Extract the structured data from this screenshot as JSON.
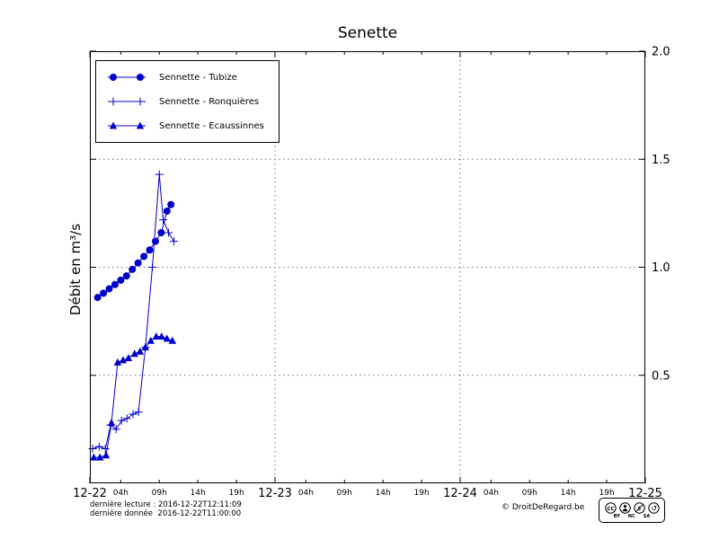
{
  "title": "Senette",
  "footer": {
    "last_read": "dernière lecture : 2016-12-22T12:11:09",
    "last_data": "dernière donnée  2016-12-22T11:00:00",
    "copyright": "© DroitDeRegard.be"
  },
  "license": {
    "cc": "CC",
    "labels": [
      "BY",
      "NC",
      "SA"
    ]
  },
  "chart_data": {
    "type": "line",
    "title": "Senette",
    "ylabel": "Débit en m³/s",
    "color": "#0000cc",
    "xlim_hours": [
      0,
      72
    ],
    "ylim": [
      0,
      2.0
    ],
    "x_major_ticks": [
      {
        "hour": 0,
        "label": "12-22"
      },
      {
        "hour": 24,
        "label": "12-23"
      },
      {
        "hour": 48,
        "label": "12-24"
      },
      {
        "hour": 72,
        "label": "12-25"
      }
    ],
    "x_minor_ticks": [
      {
        "hour": 4,
        "label": "04h"
      },
      {
        "hour": 9,
        "label": "09h"
      },
      {
        "hour": 14,
        "label": "14h"
      },
      {
        "hour": 19,
        "label": "19h"
      },
      {
        "hour": 28,
        "label": "04h"
      },
      {
        "hour": 33,
        "label": "09h"
      },
      {
        "hour": 38,
        "label": "14h"
      },
      {
        "hour": 43,
        "label": "19h"
      },
      {
        "hour": 52,
        "label": "04h"
      },
      {
        "hour": 57,
        "label": "09h"
      },
      {
        "hour": 62,
        "label": "14h"
      },
      {
        "hour": 67,
        "label": "19h"
      }
    ],
    "y_ticks": [
      {
        "value": 0.5,
        "label": "0.5"
      },
      {
        "value": 1.0,
        "label": "1.0"
      },
      {
        "value": 1.5,
        "label": "1.5"
      },
      {
        "value": 2.0,
        "label": "2.0"
      }
    ],
    "grid_x_hours": [
      24,
      48
    ],
    "grid_y_values": [
      0.5,
      1.0,
      1.5
    ],
    "series": [
      {
        "name": "Sennette - Tubize",
        "marker": "circle",
        "x": [
          1,
          1.75,
          2.5,
          3.25,
          4,
          4.75,
          5.5,
          6.25,
          7,
          7.75,
          8.5,
          9.25,
          10,
          10.5
        ],
        "y": [
          0.86,
          0.88,
          0.9,
          0.92,
          0.94,
          0.96,
          0.99,
          1.02,
          1.05,
          1.08,
          1.12,
          1.16,
          1.26,
          1.29
        ]
      },
      {
        "name": "Sennette - Ronquières",
        "marker": "plus",
        "x": [
          0.35,
          1.2,
          2,
          2.7,
          3.4,
          4.1,
          4.8,
          5.6,
          6.3,
          7.2,
          8.1,
          9,
          9.5,
          10.2,
          10.9
        ],
        "y": [
          0.16,
          0.17,
          0.16,
          0.27,
          0.25,
          0.29,
          0.3,
          0.32,
          0.33,
          0.63,
          1.0,
          1.43,
          1.22,
          1.16,
          1.12
        ]
      },
      {
        "name": "Sennette - Ecaussinnes",
        "marker": "triangle",
        "x": [
          0.5,
          1.3,
          2.1,
          2.8,
          3.6,
          4.3,
          5,
          5.8,
          6.5,
          7.2,
          7.9,
          8.6,
          9.3,
          10,
          10.7
        ],
        "y": [
          0.12,
          0.12,
          0.13,
          0.28,
          0.56,
          0.57,
          0.58,
          0.6,
          0.61,
          0.63,
          0.66,
          0.68,
          0.68,
          0.67,
          0.66
        ]
      }
    ]
  }
}
